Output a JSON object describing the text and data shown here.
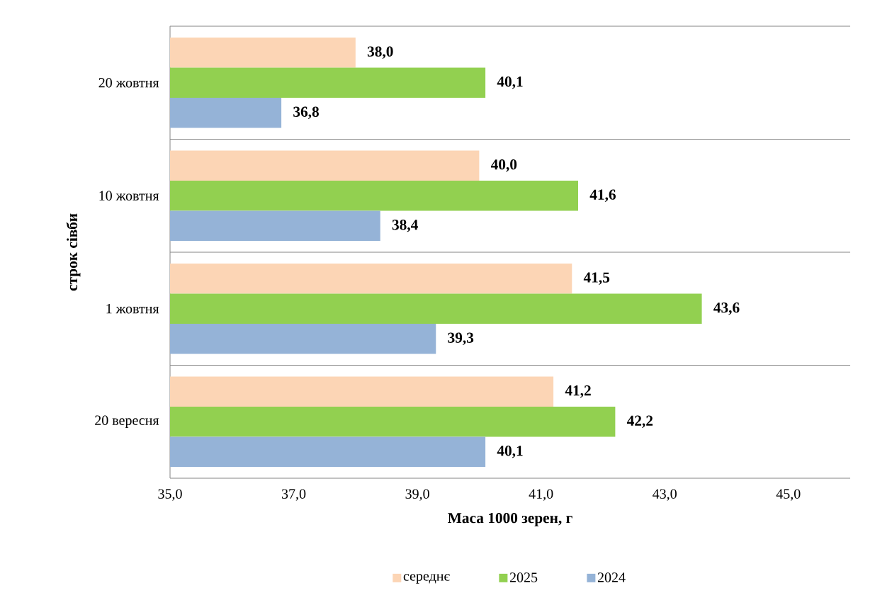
{
  "chart_data": {
    "type": "bar",
    "orientation": "horizontal",
    "categories": [
      "20 жовтня",
      "10 жовтня",
      "1 жовтня",
      "20 вересня"
    ],
    "series": [
      {
        "name": "середнє",
        "color": "#fcd5b5",
        "values": [
          38.0,
          40.0,
          41.5,
          41.2
        ],
        "value_labels": [
          "38,0",
          "40,0",
          "41,5",
          "41,2"
        ]
      },
      {
        "name": "2025",
        "color": "#92d050",
        "values": [
          40.1,
          41.6,
          43.6,
          42.2
        ],
        "value_labels": [
          "40,1",
          "41,6",
          "43,6",
          "42,2"
        ]
      },
      {
        "name": "2024",
        "color": "#95b3d7",
        "values": [
          36.8,
          38.4,
          39.3,
          40.1
        ],
        "value_labels": [
          "36,8",
          "38,4",
          "39,3",
          "40,1"
        ]
      }
    ],
    "xlim": [
      35,
      46
    ],
    "xticks": [
      {
        "value": 35,
        "label": "35,0"
      },
      {
        "value": 37,
        "label": "37,0"
      },
      {
        "value": 39,
        "label": "39,0"
      },
      {
        "value": 41,
        "label": "41,0"
      },
      {
        "value": 43,
        "label": "43,0"
      },
      {
        "value": 45,
        "label": "45,0"
      }
    ],
    "xlabel": "Маса 1000 зерен, г",
    "ylabel": "строк сівби",
    "grid": "y",
    "legend": "bottom"
  }
}
